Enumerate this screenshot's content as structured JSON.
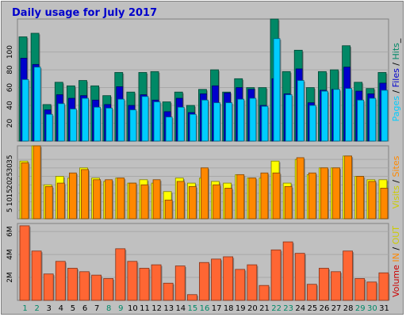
{
  "title": "Daily usage for July 2017",
  "colors": {
    "background": "#c0c0c0",
    "pages": "#00ccff",
    "files": "#0000cc",
    "hits": "#008866",
    "visits": "#ffff00",
    "sites": "#ff8800",
    "volume": "#ff6633",
    "in": "#cc2200",
    "out": "#ffff00",
    "weekend_label": "#008866",
    "weekday_label": "#000000"
  },
  "right_labels": {
    "top": [
      {
        "text": "Pages",
        "color": "#00ccff"
      },
      {
        "text": " / ",
        "color": "#000000"
      },
      {
        "text": "Files",
        "color": "#0000cc"
      },
      {
        "text": " / ",
        "color": "#000000"
      },
      {
        "text": "Hits",
        "color": "#008866"
      },
      {
        "text": "_",
        "color": "#000000"
      }
    ],
    "middle": [
      {
        "text": "Visits",
        "color": "#cccc00"
      },
      {
        "text": " / ",
        "color": "#000000"
      },
      {
        "text": "Sites",
        "color": "#ff8800"
      }
    ],
    "bottom": [
      {
        "text": "Volume",
        "color": "#cc0000"
      },
      {
        "text": " IN",
        "color": "#ff8800"
      },
      {
        "text": " / ",
        "color": "#000000"
      },
      {
        "text": "OUT",
        "color": "#cccc00"
      }
    ]
  },
  "chart_data": [
    {
      "type": "bar",
      "title": "Daily usage for July 2017",
      "categories": [
        "1",
        "2",
        "3",
        "4",
        "5",
        "6",
        "7",
        "8",
        "9",
        "10",
        "11",
        "12",
        "13",
        "14",
        "15",
        "16",
        "17",
        "18",
        "19",
        "20",
        "21",
        "22",
        "23",
        "24",
        "25",
        "26",
        "27",
        "28",
        "29",
        "30",
        "31"
      ],
      "weekend_days": [
        "1",
        "2",
        "8",
        "9",
        "15",
        "16",
        "22",
        "23",
        "29",
        "30"
      ],
      "yticks": [
        "20",
        "40",
        "60",
        "80",
        "100"
      ],
      "ylim": [
        0,
        137
      ],
      "series": [
        {
          "name": "Hits",
          "values": [
            117,
            121,
            41,
            66,
            62,
            68,
            62,
            51,
            77,
            55,
            77,
            78,
            44,
            55,
            40,
            58,
            80,
            55,
            70,
            60,
            60,
            137,
            78,
            102,
            60,
            78,
            80,
            107,
            66,
            59,
            77
          ]
        },
        {
          "name": "Files",
          "values": [
            93,
            86,
            35,
            52,
            48,
            51,
            46,
            41,
            61,
            40,
            52,
            46,
            33,
            48,
            32,
            53,
            62,
            54,
            60,
            58,
            40,
            70,
            53,
            81,
            43,
            57,
            58,
            83,
            56,
            53,
            65
          ]
        },
        {
          "name": "Pages",
          "values": [
            69,
            83,
            30,
            42,
            36,
            48,
            38,
            37,
            47,
            35,
            50,
            44,
            27,
            38,
            30,
            46,
            43,
            43,
            47,
            48,
            39,
            115,
            52,
            68,
            40,
            56,
            58,
            59,
            46,
            48,
            57
          ]
        }
      ]
    },
    {
      "type": "bar",
      "categories": [
        "1",
        "2",
        "3",
        "4",
        "5",
        "6",
        "7",
        "8",
        "9",
        "10",
        "11",
        "12",
        "13",
        "14",
        "15",
        "16",
        "17",
        "18",
        "19",
        "20",
        "21",
        "22",
        "23",
        "24",
        "25",
        "26",
        "27",
        "28",
        "29",
        "30",
        "31"
      ],
      "yticks": [
        "5",
        "10",
        "15",
        "20",
        "25",
        "30",
        "35"
      ],
      "ylim": [
        0,
        43
      ],
      "series": [
        {
          "name": "Visits",
          "values": [
            34,
            43,
            20,
            25,
            24,
            30,
            24,
            22,
            24,
            21,
            23,
            21,
            16,
            24,
            21,
            24,
            22,
            21,
            26,
            24,
            24,
            34,
            21,
            35,
            26,
            30,
            30,
            37,
            25,
            23,
            23
          ]
        },
        {
          "name": "Sites",
          "values": [
            33,
            43,
            19,
            21,
            27,
            29,
            23,
            23,
            24,
            21,
            20,
            23,
            11,
            22,
            19,
            30,
            20,
            18,
            26,
            24,
            27,
            27,
            19,
            36,
            27,
            30,
            30,
            37,
            25,
            22,
            18
          ]
        }
      ]
    },
    {
      "type": "bar",
      "categories": [
        "1",
        "2",
        "3",
        "4",
        "5",
        "6",
        "7",
        "8",
        "9",
        "10",
        "11",
        "12",
        "13",
        "14",
        "15",
        "16",
        "17",
        "18",
        "19",
        "20",
        "21",
        "22",
        "23",
        "24",
        "25",
        "26",
        "27",
        "28",
        "29",
        "30",
        "31"
      ],
      "yticks": [
        "2M",
        "4M",
        "6M"
      ],
      "ylim": [
        0,
        6.7
      ],
      "series": [
        {
          "name": "Volume",
          "values": [
            6.5,
            4.3,
            2.3,
            3.4,
            2.8,
            2.5,
            2.2,
            1.9,
            4.5,
            3.4,
            2.8,
            3.1,
            1.5,
            3.0,
            0.5,
            3.3,
            3.6,
            3.8,
            2.7,
            3.1,
            1.3,
            4.4,
            5.1,
            4.1,
            1.4,
            2.8,
            2.5,
            4.3,
            1.9,
            1.6,
            2.4
          ]
        }
      ]
    }
  ]
}
